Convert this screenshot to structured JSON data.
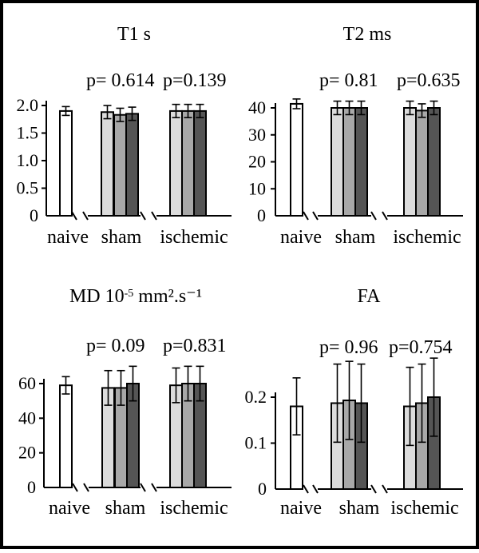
{
  "chart_data": [
    {
      "type": "bar",
      "title": "T1 s",
      "title_sup": "",
      "title_tail": "",
      "categories": [
        "naive",
        "sham",
        "ischemic"
      ],
      "yticks": [
        "0",
        "0.5",
        "1.0",
        "1.5",
        "2.0"
      ],
      "ylim": [
        0,
        2.0
      ],
      "pvalues": [
        "p= 0.614",
        "p=0.139"
      ],
      "bars": [
        {
          "group": "naive",
          "shade": "white",
          "value": 1.9,
          "err": 0.08
        },
        {
          "group": "sham",
          "shade": "light",
          "value": 1.88,
          "err": 0.12
        },
        {
          "group": "sham",
          "shade": "mid",
          "value": 1.83,
          "err": 0.12
        },
        {
          "group": "sham",
          "shade": "dark",
          "value": 1.85,
          "err": 0.12
        },
        {
          "group": "ischemic",
          "shade": "light",
          "value": 1.9,
          "err": 0.12
        },
        {
          "group": "ischemic",
          "shade": "mid",
          "value": 1.9,
          "err": 0.12
        },
        {
          "group": "ischemic",
          "shade": "dark",
          "value": 1.9,
          "err": 0.12
        }
      ]
    },
    {
      "type": "bar",
      "title": "T2 ms",
      "title_sup": "",
      "title_tail": "",
      "categories": [
        "naive",
        "sham",
        "ischemic"
      ],
      "yticks": [
        "0",
        "10",
        "20",
        "30",
        "40"
      ],
      "ylim": [
        0,
        40
      ],
      "pvalues": [
        "p= 0.81",
        "p=0.635"
      ],
      "bars": [
        {
          "group": "naive",
          "shade": "white",
          "value": 41.5,
          "err": 1.8
        },
        {
          "group": "sham",
          "shade": "light",
          "value": 40.0,
          "err": 2.5
        },
        {
          "group": "sham",
          "shade": "mid",
          "value": 40.0,
          "err": 2.5
        },
        {
          "group": "sham",
          "shade": "dark",
          "value": 40.0,
          "err": 2.5
        },
        {
          "group": "ischemic",
          "shade": "light",
          "value": 40.0,
          "err": 2.5
        },
        {
          "group": "ischemic",
          "shade": "mid",
          "value": 39.0,
          "err": 2.5
        },
        {
          "group": "ischemic",
          "shade": "dark",
          "value": 40.0,
          "err": 2.5
        }
      ]
    },
    {
      "type": "bar",
      "title": "MD 10",
      "title_sup": "-5",
      "title_tail": " mm².s⁻¹",
      "categories": [
        "naive",
        "sham",
        "ischemic"
      ],
      "yticks": [
        "0",
        "20",
        "40",
        "60"
      ],
      "ylim": [
        0,
        60
      ],
      "pvalues": [
        "p= 0.09",
        "p=0.831"
      ],
      "bars": [
        {
          "group": "naive",
          "shade": "white",
          "value": 59,
          "err": 5
        },
        {
          "group": "sham",
          "shade": "light",
          "value": 57.5,
          "err": 10
        },
        {
          "group": "sham",
          "shade": "mid",
          "value": 57.5,
          "err": 10
        },
        {
          "group": "sham",
          "shade": "dark",
          "value": 60,
          "err": 10
        },
        {
          "group": "ischemic",
          "shade": "light",
          "value": 59,
          "err": 10
        },
        {
          "group": "ischemic",
          "shade": "mid",
          "value": 60,
          "err": 10
        },
        {
          "group": "ischemic",
          "shade": "dark",
          "value": 60,
          "err": 10
        }
      ]
    },
    {
      "type": "bar",
      "title": "FA",
      "title_sup": "",
      "title_tail": "",
      "categories": [
        "naive",
        "sham",
        "ischemic"
      ],
      "yticks": [
        "0",
        "0.1",
        "0.2"
      ],
      "ylim": [
        0,
        0.2
      ],
      "pvalues": [
        "p= 0.96",
        "p=0.754"
      ],
      "bars": [
        {
          "group": "naive",
          "shade": "white",
          "value": 0.18,
          "err": 0.062
        },
        {
          "group": "sham",
          "shade": "light",
          "value": 0.187,
          "err": 0.085
        },
        {
          "group": "sham",
          "shade": "mid",
          "value": 0.193,
          "err": 0.085
        },
        {
          "group": "sham",
          "shade": "dark",
          "value": 0.187,
          "err": 0.085
        },
        {
          "group": "ischemic",
          "shade": "light",
          "value": 0.18,
          "err": 0.085
        },
        {
          "group": "ischemic",
          "shade": "mid",
          "value": 0.187,
          "err": 0.085
        },
        {
          "group": "ischemic",
          "shade": "dark",
          "value": 0.2,
          "err": 0.085
        }
      ]
    }
  ],
  "colors": {
    "white": "#ffffff",
    "light": "#dcdcdc",
    "mid": "#a8a8a8",
    "dark": "#555555",
    "frame": "#000000"
  }
}
